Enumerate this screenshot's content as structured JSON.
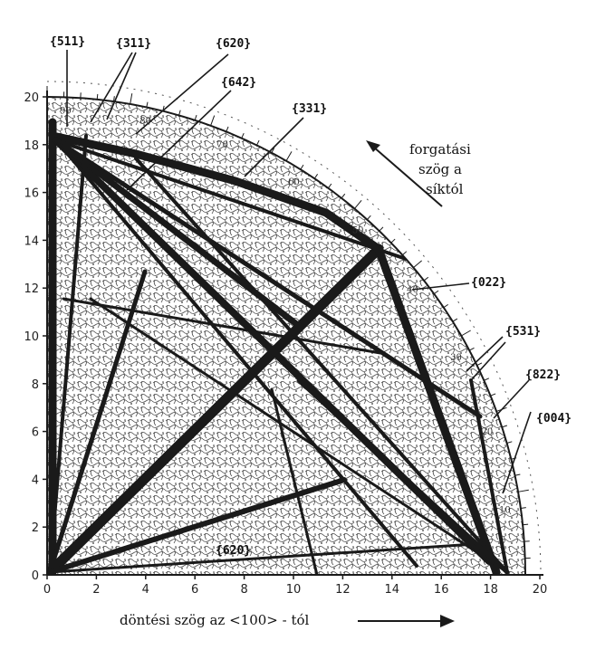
{
  "axes": {
    "x_ticks": [
      "0",
      "2",
      "4",
      "6",
      "8",
      "10",
      "12",
      "14",
      "16",
      "18",
      "20"
    ],
    "y_ticks": [
      "0",
      "2",
      "4",
      "6",
      "8",
      "10",
      "12",
      "14",
      "16",
      "18",
      "20"
    ],
    "xlabel": "döntési szög az <100> - tól",
    "range": [
      0,
      20
    ]
  },
  "rotation_caption": [
    "forgatási",
    "szög a",
    "síktól"
  ],
  "rotation_scale_labels": [
    "10",
    "20",
    "30",
    "40",
    "50",
    "60",
    "70",
    "80",
    "90"
  ],
  "plane_labels": [
    {
      "id": "511",
      "text": "{511}"
    },
    {
      "id": "311",
      "text": "{311}"
    },
    {
      "id": "620a",
      "text": "{620}"
    },
    {
      "id": "642",
      "text": "{642}"
    },
    {
      "id": "331",
      "text": "{331}"
    },
    {
      "id": "022",
      "text": "{022}"
    },
    {
      "id": "531",
      "text": "{531}"
    },
    {
      "id": "822",
      "text": "{822}"
    },
    {
      "id": "004",
      "text": "{004}"
    },
    {
      "id": "620b",
      "text": "{620}"
    }
  ],
  "colors": {
    "ink": "#1a1a1a",
    "texture": "#3a3a3a",
    "paper": "#ffffff"
  }
}
